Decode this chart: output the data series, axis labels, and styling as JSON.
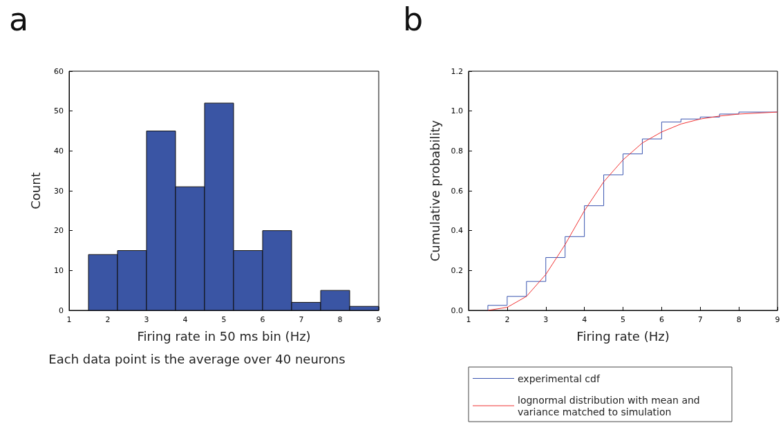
{
  "chart_data": [
    {
      "type": "histogram",
      "title": "a",
      "xlabel": "Firing rate in 50 ms bin (Hz)",
      "ylabel": "Count",
      "annotations": [
        "Each data point is the average over 40 neurons"
      ],
      "bins": [
        1.5,
        2.25,
        3,
        3.75,
        4.5,
        5.25,
        6,
        6.75,
        7.5,
        8.25,
        9
      ],
      "values": [
        14,
        15,
        45,
        31,
        52,
        15,
        20,
        2,
        5,
        1
      ],
      "color": "#3a55a4",
      "xlim": [
        1,
        9
      ],
      "xticks": [
        1,
        2,
        3,
        4,
        5,
        6,
        7,
        8,
        9
      ],
      "ylim": [
        0,
        60
      ],
      "yticks": [
        0,
        10,
        20,
        30,
        40,
        50,
        60
      ],
      "grid": false
    },
    {
      "type": "step",
      "title": "b",
      "xlabel": "Firing rate (Hz)",
      "ylabel": "Cumulative probability",
      "series": [
        {
          "name": "experimental cdf",
          "color": "#3a55b0",
          "x": [
            1.5,
            1.5,
            2,
            2.5,
            3,
            3.5,
            4,
            4.5,
            5,
            5.5,
            6,
            6.5,
            7,
            7.5,
            8,
            9
          ],
          "values": [
            0,
            0.025,
            0.07,
            0.145,
            0.265,
            0.37,
            0.525,
            0.68,
            0.785,
            0.86,
            0.945,
            0.96,
            0.97,
            0.985,
            0.995,
            0.995
          ]
        },
        {
          "name": "lognormal distribution with mean and variance matched to simulation",
          "type": "line",
          "color": "#f03030",
          "x": [
            1.5,
            2,
            2.5,
            3,
            3.5,
            4,
            4.5,
            5,
            5.5,
            6,
            6.5,
            7,
            7.5,
            8,
            9
          ],
          "values": [
            0,
            0.015,
            0.07,
            0.18,
            0.33,
            0.5,
            0.645,
            0.755,
            0.84,
            0.895,
            0.935,
            0.96,
            0.975,
            0.985,
            0.995
          ]
        }
      ],
      "xlim": [
        1,
        9
      ],
      "xticks": [
        1,
        2,
        3,
        4,
        5,
        6,
        7,
        8,
        9
      ],
      "ylim": [
        0,
        1.2
      ],
      "yticks": [
        {
          "value": 0,
          "label": "0.0"
        },
        {
          "value": 0.2,
          "label": "0.2"
        },
        {
          "value": 0.4,
          "label": "0.4"
        },
        {
          "value": 0.6,
          "label": "0.6"
        },
        {
          "value": 0.8,
          "label": "0.8"
        },
        {
          "value": 1,
          "label": "1.0"
        },
        {
          "value": 1.2,
          "label": "1.2"
        }
      ],
      "grid": false,
      "marker": "none",
      "legend": "bottom"
    }
  ]
}
